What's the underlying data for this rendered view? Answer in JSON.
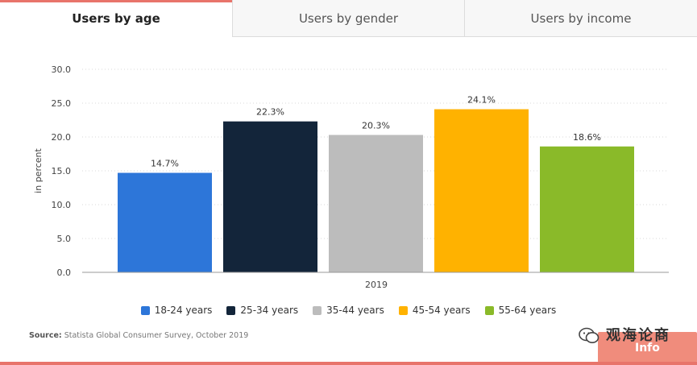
{
  "tabs": [
    {
      "label": "Users by age",
      "active": true
    },
    {
      "label": "Users by gender",
      "active": false
    },
    {
      "label": "Users by income",
      "active": false
    }
  ],
  "chart_data": {
    "type": "bar",
    "categories": [
      "2019"
    ],
    "series": [
      {
        "name": "18-24 years",
        "values": [
          14.7
        ],
        "label": "14.7%",
        "color": "#2d76d9"
      },
      {
        "name": "25-34 years",
        "values": [
          22.3
        ],
        "label": "22.3%",
        "color": "#13253a"
      },
      {
        "name": "35-44 years",
        "values": [
          20.3
        ],
        "label": "20.3%",
        "color": "#bcbcbc"
      },
      {
        "name": "45-54 years",
        "values": [
          24.1
        ],
        "label": "24.1%",
        "color": "#ffb200"
      },
      {
        "name": "55-64 years",
        "values": [
          18.6
        ],
        "label": "18.6%",
        "color": "#8aba29"
      }
    ],
    "title": "",
    "xlabel": "",
    "ylabel": "in percent",
    "ylim": [
      0,
      30
    ],
    "yticks": [
      "0.0",
      "5.0",
      "10.0",
      "15.0",
      "20.0",
      "25.0",
      "30.0"
    ],
    "grid": true,
    "legend": "bottom"
  },
  "source": {
    "label": "Source:",
    "text": "Statista Global Consumer Survey, October 2019"
  },
  "watermark": {
    "text": "观海论商",
    "sub": "Info",
    "icon": "wechat-icon"
  },
  "colors": {
    "accent": "#e8746b",
    "watermark_bg": "#f08c7c"
  }
}
